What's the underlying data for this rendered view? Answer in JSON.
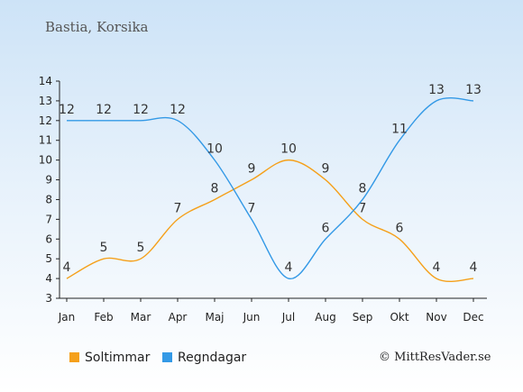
{
  "header": {
    "title": "Bastia, Korsika"
  },
  "legend": {
    "items": [
      {
        "label": "Soltimmar",
        "color": "#f5a01a"
      },
      {
        "label": "Regndagar",
        "color": "#3399e6"
      }
    ]
  },
  "footer": {
    "copyright": "© MittResVader.se"
  },
  "chart_data": {
    "type": "line",
    "title": "Bastia, Korsika",
    "xlabel": "",
    "ylabel": "",
    "categories": [
      "Jan",
      "Feb",
      "Mar",
      "Apr",
      "Maj",
      "Jun",
      "Jul",
      "Aug",
      "Sep",
      "Okt",
      "Nov",
      "Dec"
    ],
    "ylim": [
      3,
      14
    ],
    "yticks": [
      3,
      4,
      5,
      6,
      7,
      8,
      9,
      10,
      11,
      12,
      13,
      14
    ],
    "grid": false,
    "legend_position": "bottom",
    "series": [
      {
        "name": "Soltimmar",
        "color": "#f5a01a",
        "values": [
          4,
          5,
          5,
          7,
          8,
          9,
          10,
          9,
          7,
          6,
          4,
          4
        ]
      },
      {
        "name": "Regndagar",
        "color": "#3399e6",
        "values": [
          12,
          12,
          12,
          12,
          10,
          7,
          4,
          6,
          8,
          11,
          13,
          13
        ]
      }
    ]
  }
}
